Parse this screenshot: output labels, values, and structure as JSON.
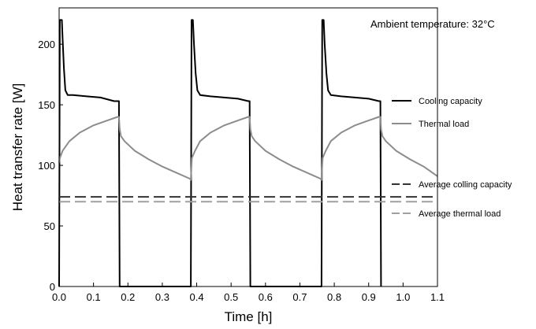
{
  "chart_data": {
    "type": "line",
    "xlabel": "Time [h]",
    "ylabel": "Heat transfer rate [W]",
    "xlim": [
      0.0,
      1.1
    ],
    "ylim": [
      0,
      230
    ],
    "xticks": [
      "0.0",
      "0.1",
      "0.2",
      "0.3",
      "0.4",
      "0.5",
      "0.6",
      "0.7",
      "0.8",
      "0.9",
      "1.0",
      "1.1"
    ],
    "yticks": [
      "0",
      "50",
      "100",
      "150",
      "200"
    ],
    "annotation": "Ambient temperature: 32°C",
    "grid": false,
    "legend_position": "right",
    "series": [
      {
        "name": "Cooling capacity",
        "style": "solid",
        "color": "#000000",
        "points": [
          [
            0.0,
            0
          ],
          [
            0.002,
            220
          ],
          [
            0.008,
            220
          ],
          [
            0.01,
            205
          ],
          [
            0.014,
            180
          ],
          [
            0.018,
            162
          ],
          [
            0.025,
            158
          ],
          [
            0.04,
            158
          ],
          [
            0.08,
            157
          ],
          [
            0.12,
            156
          ],
          [
            0.16,
            153
          ],
          [
            0.174,
            153
          ],
          [
            0.176,
            0
          ],
          [
            0.383,
            0
          ],
          [
            0.385,
            220
          ],
          [
            0.389,
            220
          ],
          [
            0.392,
            200
          ],
          [
            0.397,
            176
          ],
          [
            0.402,
            162
          ],
          [
            0.41,
            158
          ],
          [
            0.44,
            157
          ],
          [
            0.48,
            156
          ],
          [
            0.52,
            155
          ],
          [
            0.55,
            153
          ],
          [
            0.554,
            153
          ],
          [
            0.556,
            0
          ],
          [
            0.763,
            0
          ],
          [
            0.765,
            220
          ],
          [
            0.769,
            220
          ],
          [
            0.772,
            200
          ],
          [
            0.777,
            176
          ],
          [
            0.782,
            162
          ],
          [
            0.79,
            158
          ],
          [
            0.82,
            157
          ],
          [
            0.86,
            156
          ],
          [
            0.9,
            155
          ],
          [
            0.93,
            153
          ],
          [
            0.934,
            153
          ],
          [
            0.936,
            0
          ]
        ]
      },
      {
        "name": "Thermal load",
        "style": "solid",
        "color": "#8c8c8c",
        "points": [
          [
            0.0,
            102
          ],
          [
            0.002,
            106
          ],
          [
            0.01,
            112
          ],
          [
            0.03,
            120
          ],
          [
            0.06,
            127
          ],
          [
            0.1,
            133
          ],
          [
            0.14,
            137
          ],
          [
            0.17,
            140
          ],
          [
            0.174,
            140
          ],
          [
            0.176,
            130
          ],
          [
            0.18,
            124
          ],
          [
            0.19,
            120
          ],
          [
            0.22,
            112
          ],
          [
            0.26,
            105
          ],
          [
            0.3,
            99
          ],
          [
            0.34,
            94
          ],
          [
            0.38,
            89
          ],
          [
            0.383,
            88
          ],
          [
            0.384,
            95
          ],
          [
            0.386,
            106
          ],
          [
            0.395,
            112
          ],
          [
            0.41,
            120
          ],
          [
            0.44,
            127
          ],
          [
            0.48,
            133
          ],
          [
            0.52,
            137
          ],
          [
            0.55,
            140
          ],
          [
            0.554,
            140
          ],
          [
            0.556,
            130
          ],
          [
            0.56,
            124
          ],
          [
            0.57,
            120
          ],
          [
            0.6,
            112
          ],
          [
            0.64,
            105
          ],
          [
            0.68,
            99
          ],
          [
            0.72,
            94
          ],
          [
            0.76,
            89
          ],
          [
            0.763,
            88
          ],
          [
            0.764,
            95
          ],
          [
            0.766,
            106
          ],
          [
            0.775,
            112
          ],
          [
            0.79,
            120
          ],
          [
            0.82,
            127
          ],
          [
            0.86,
            133
          ],
          [
            0.9,
            137
          ],
          [
            0.93,
            140
          ],
          [
            0.934,
            140
          ],
          [
            0.936,
            130
          ],
          [
            0.94,
            124
          ],
          [
            0.95,
            120
          ],
          [
            0.98,
            112
          ],
          [
            1.02,
            105
          ],
          [
            1.06,
            99
          ],
          [
            1.1,
            91
          ]
        ]
      },
      {
        "name": "Average colling capacity",
        "style": "dashed",
        "color": "#333333",
        "points": [
          [
            0.0,
            74
          ],
          [
            1.1,
            74
          ]
        ]
      },
      {
        "name": "Average thermal load",
        "style": "dashed",
        "color": "#a0a0a0",
        "points": [
          [
            0.0,
            70
          ],
          [
            1.1,
            70
          ]
        ]
      }
    ]
  }
}
